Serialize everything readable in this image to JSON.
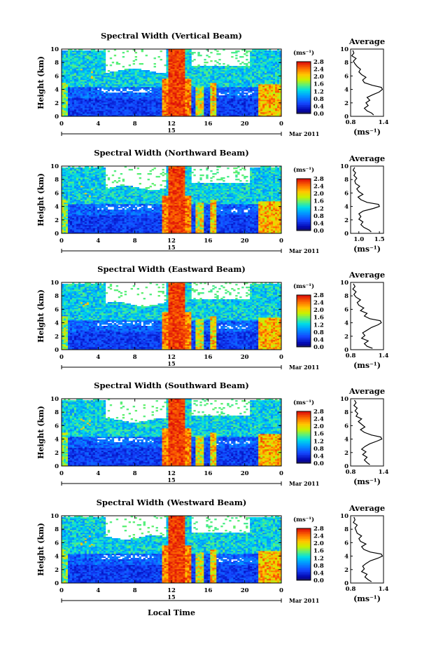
{
  "figure": {
    "ylabel": "Height (km)",
    "xlabel": "Local Time",
    "date_label": "Mar 2011",
    "day_label": "15",
    "unit_label": "(ms⁻¹)",
    "avg_title": "Average",
    "avg_xlabel": "(ms⁻¹)"
  },
  "chart_data": [
    {
      "type": "heatmap",
      "title": "Spectral Width (Vertical Beam)",
      "x_ticks": [
        "0",
        "4",
        "8",
        "12",
        "16",
        "20",
        "0"
      ],
      "y_ticks": [
        "0",
        "2",
        "4",
        "6",
        "8",
        "10"
      ],
      "colorbar_ticks": [
        "0.0",
        "0.4",
        "0.8",
        "1.2",
        "1.6",
        "2.0",
        "2.4",
        "2.8"
      ],
      "avg_x_ticks": [
        "0.8",
        "1.4"
      ],
      "avg_x_range": [
        0.8,
        1.4
      ],
      "avg_profile": [
        [
          1.22,
          0.2
        ],
        [
          1.18,
          0.5
        ],
        [
          1.1,
          0.8
        ],
        [
          1.05,
          1.2
        ],
        [
          1.12,
          1.6
        ],
        [
          1.08,
          2.0
        ],
        [
          1.15,
          2.4
        ],
        [
          1.1,
          2.8
        ],
        [
          1.2,
          3.2
        ],
        [
          1.32,
          3.6
        ],
        [
          1.38,
          4.0
        ],
        [
          1.36,
          4.3
        ],
        [
          1.2,
          4.6
        ],
        [
          1.05,
          5.0
        ],
        [
          1.02,
          5.4
        ],
        [
          1.08,
          5.8
        ],
        [
          1.0,
          6.2
        ],
        [
          0.95,
          6.6
        ],
        [
          0.98,
          7.0
        ],
        [
          0.92,
          7.4
        ],
        [
          0.88,
          7.8
        ],
        [
          0.85,
          8.2
        ],
        [
          0.9,
          8.6
        ],
        [
          0.82,
          9.0
        ],
        [
          0.86,
          9.4
        ],
        [
          0.84,
          9.8
        ]
      ]
    },
    {
      "type": "heatmap",
      "title": "Spectral Width (Northward Beam)",
      "x_ticks": [
        "0",
        "4",
        "8",
        "12",
        "16",
        "20",
        "0"
      ],
      "y_ticks": [
        "0",
        "2",
        "4",
        "6",
        "8",
        "10"
      ],
      "colorbar_ticks": [
        "0.0",
        "0.4",
        "0.8",
        "1.2",
        "1.6",
        "2.0",
        "2.4",
        "2.8"
      ],
      "avg_x_ticks": [
        "1.0",
        "1.5"
      ],
      "avg_x_range": [
        0.8,
        1.6
      ],
      "avg_profile": [
        [
          1.3,
          0.2
        ],
        [
          1.25,
          0.5
        ],
        [
          1.12,
          0.9
        ],
        [
          1.05,
          1.3
        ],
        [
          1.1,
          1.7
        ],
        [
          1.0,
          2.1
        ],
        [
          1.05,
          2.5
        ],
        [
          1.0,
          2.9
        ],
        [
          1.1,
          3.3
        ],
        [
          1.35,
          3.7
        ],
        [
          1.5,
          4.0
        ],
        [
          1.48,
          4.3
        ],
        [
          1.2,
          4.6
        ],
        [
          1.05,
          5.0
        ],
        [
          0.98,
          5.4
        ],
        [
          1.1,
          5.8
        ],
        [
          1.0,
          6.2
        ],
        [
          0.95,
          6.6
        ],
        [
          1.02,
          7.0
        ],
        [
          0.92,
          7.4
        ],
        [
          0.9,
          7.8
        ],
        [
          0.95,
          8.2
        ],
        [
          0.88,
          8.6
        ],
        [
          0.92,
          9.0
        ],
        [
          0.86,
          9.4
        ],
        [
          0.9,
          9.8
        ]
      ]
    },
    {
      "type": "heatmap",
      "title": "Spectral Width (Eastward Beam)",
      "x_ticks": [
        "0",
        "4",
        "8",
        "12",
        "16",
        "20",
        "0"
      ],
      "y_ticks": [
        "0",
        "2",
        "4",
        "6",
        "8",
        "10"
      ],
      "colorbar_ticks": [
        "0.0",
        "0.4",
        "0.8",
        "1.2",
        "1.6",
        "2.0",
        "2.4",
        "2.8"
      ],
      "avg_x_ticks": [
        "0.8",
        "1.4"
      ],
      "avg_x_range": [
        0.8,
        1.4
      ],
      "avg_profile": [
        [
          1.2,
          0.2
        ],
        [
          1.1,
          0.5
        ],
        [
          1.05,
          0.9
        ],
        [
          1.12,
          1.3
        ],
        [
          1.0,
          1.7
        ],
        [
          1.06,
          2.1
        ],
        [
          1.02,
          2.5
        ],
        [
          1.1,
          2.9
        ],
        [
          1.18,
          3.3
        ],
        [
          1.3,
          3.7
        ],
        [
          1.36,
          4.0
        ],
        [
          1.34,
          4.3
        ],
        [
          1.15,
          4.6
        ],
        [
          1.05,
          5.0
        ],
        [
          1.1,
          5.4
        ],
        [
          0.98,
          5.8
        ],
        [
          1.04,
          6.2
        ],
        [
          0.95,
          6.6
        ],
        [
          0.92,
          7.0
        ],
        [
          0.98,
          7.4
        ],
        [
          0.9,
          7.8
        ],
        [
          0.86,
          8.2
        ],
        [
          0.9,
          8.6
        ],
        [
          0.84,
          9.0
        ],
        [
          0.88,
          9.4
        ],
        [
          0.85,
          9.8
        ]
      ]
    },
    {
      "type": "heatmap",
      "title": "Spectral Width (Southward Beam)",
      "x_ticks": [
        "0",
        "4",
        "8",
        "12",
        "16",
        "20",
        "0"
      ],
      "y_ticks": [
        "0",
        "2",
        "4",
        "6",
        "8",
        "10"
      ],
      "colorbar_ticks": [
        "0.0",
        "0.4",
        "0.8",
        "1.2",
        "1.6",
        "2.0",
        "2.4",
        "2.8"
      ],
      "avg_x_ticks": [
        "0.8",
        "1.4"
      ],
      "avg_x_range": [
        0.8,
        1.4
      ],
      "avg_profile": [
        [
          1.15,
          0.2
        ],
        [
          1.1,
          0.5
        ],
        [
          1.05,
          0.9
        ],
        [
          1.1,
          1.3
        ],
        [
          1.02,
          1.7
        ],
        [
          1.08,
          2.1
        ],
        [
          1.0,
          2.5
        ],
        [
          1.06,
          2.9
        ],
        [
          1.15,
          3.3
        ],
        [
          1.28,
          3.7
        ],
        [
          1.37,
          4.0
        ],
        [
          1.35,
          4.3
        ],
        [
          1.18,
          4.6
        ],
        [
          1.05,
          5.0
        ],
        [
          0.98,
          5.4
        ],
        [
          1.06,
          5.8
        ],
        [
          1.0,
          6.2
        ],
        [
          0.94,
          6.6
        ],
        [
          1.0,
          7.0
        ],
        [
          0.9,
          7.4
        ],
        [
          0.93,
          7.8
        ],
        [
          0.88,
          8.2
        ],
        [
          0.92,
          8.6
        ],
        [
          0.86,
          9.0
        ],
        [
          0.9,
          9.4
        ],
        [
          0.87,
          9.8
        ]
      ]
    },
    {
      "type": "heatmap",
      "title": "Spectral Width (Westward Beam)",
      "x_ticks": [
        "0",
        "4",
        "8",
        "12",
        "16",
        "20",
        "0"
      ],
      "y_ticks": [
        "0",
        "2",
        "4",
        "6",
        "8",
        "10"
      ],
      "colorbar_ticks": [
        "0.0",
        "0.4",
        "0.8",
        "1.2",
        "1.6",
        "2.0",
        "2.4",
        "2.8"
      ],
      "avg_x_ticks": [
        "0.8",
        "1.4"
      ],
      "avg_x_range": [
        0.8,
        1.4
      ],
      "avg_profile": [
        [
          1.18,
          0.2
        ],
        [
          1.12,
          0.5
        ],
        [
          1.06,
          0.9
        ],
        [
          1.1,
          1.3
        ],
        [
          1.0,
          1.7
        ],
        [
          1.05,
          2.1
        ],
        [
          1.02,
          2.5
        ],
        [
          1.08,
          2.9
        ],
        [
          1.16,
          3.3
        ],
        [
          1.3,
          3.7
        ],
        [
          1.38,
          4.0
        ],
        [
          1.36,
          4.3
        ],
        [
          1.16,
          4.6
        ],
        [
          1.04,
          5.0
        ],
        [
          1.0,
          5.4
        ],
        [
          1.08,
          5.8
        ],
        [
          0.98,
          6.2
        ],
        [
          0.95,
          6.6
        ],
        [
          1.0,
          7.0
        ],
        [
          0.92,
          7.4
        ],
        [
          0.9,
          7.8
        ],
        [
          0.88,
          8.2
        ],
        [
          0.92,
          8.6
        ],
        [
          0.85,
          9.0
        ],
        [
          0.88,
          9.4
        ],
        [
          0.86,
          9.8
        ]
      ]
    }
  ]
}
